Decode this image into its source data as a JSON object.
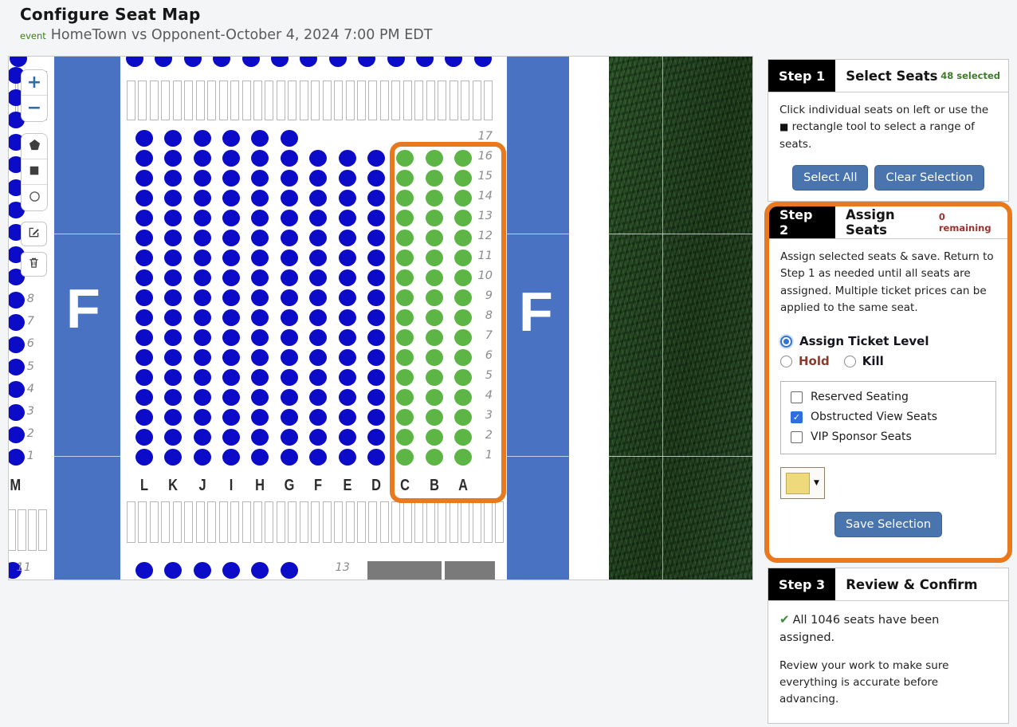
{
  "header": {
    "title": "Configure Seat Map",
    "event_label": "event",
    "event_name": "HomeTown vs Opponent-October 4, 2024 7:00 PM EDT"
  },
  "icons": {
    "rectangle_tool": "■",
    "dropdown_arrow": "▼",
    "check": "✔",
    "checkbox_check": "✓",
    "zoom_in": "+",
    "zoom_out": "−"
  },
  "colors": {
    "accent_orange": "#e8791e",
    "seat_blue": "#0b0bc8",
    "seat_selected_green": "#5cb545",
    "section_bar_blue": "#4a72c2",
    "button_blue": "#4a74ad",
    "count_green": "#3e7d27",
    "count_red": "#993333",
    "hold_red": "#8b3a2e",
    "swatch_yellow": "#eed97c"
  },
  "map": {
    "left_bar_letter": "F",
    "right_bar_letter": "F",
    "left_section": {
      "letter": "M",
      "row_numbers": [
        "8",
        "7",
        "6",
        "5",
        "4",
        "3",
        "2",
        "1"
      ],
      "bottom_row_number": "11"
    },
    "grid": {
      "column_letters": [
        "L",
        "K",
        "J",
        "I",
        "H",
        "G",
        "F",
        "E",
        "D",
        "C",
        "B",
        "A"
      ],
      "row_numbers": [
        "17",
        "16",
        "15",
        "14",
        "13",
        "12",
        "11",
        "10",
        "9",
        "8",
        "7",
        "6",
        "5",
        "4",
        "3",
        "2",
        "1"
      ],
      "row17_column_count": 6,
      "selected_column_letters": [
        "C",
        "B",
        "A"
      ],
      "bottom_row_number": "13",
      "bottom_row_dot_count": 6
    }
  },
  "steps": {
    "step1": {
      "badge": "Step 1",
      "title": "Select Seats",
      "count": "48 selected",
      "body_before_icon": "Click individual seats on left or use the ",
      "body_after_icon": " rectangle tool to select a range of seats.",
      "select_all_label": "Select All",
      "clear_selection_label": "Clear Selection"
    },
    "step2": {
      "badge": "Step 2",
      "title": "Assign Seats",
      "count": "0 remaining",
      "body": "Assign selected seats & save. Return to Step 1 as needed until all seats are assigned. Multiple ticket prices can be applied to the same seat.",
      "radio_assign_label": "Assign Ticket Level",
      "radio_hold_label": "Hold",
      "radio_kill_label": "Kill",
      "checkboxes": [
        {
          "label": "Reserved Seating",
          "checked": false
        },
        {
          "label": "Obstructed View Seats",
          "checked": true
        },
        {
          "label": "VIP Sponsor Seats",
          "checked": false
        }
      ],
      "save_label": "Save Selection"
    },
    "step3": {
      "badge": "Step 3",
      "title": "Review & Confirm",
      "check_message": "All 1046 seats have been assigned.",
      "body": "Review your work to make sure everything is accurate before advancing."
    }
  }
}
